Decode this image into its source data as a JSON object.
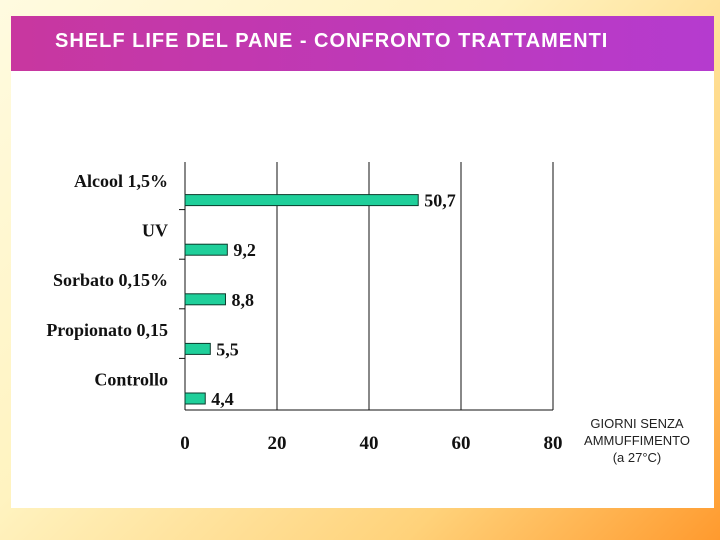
{
  "title": "SHELF LIFE DEL PANE -  CONFRONTO TRATTAMENTI",
  "colors": {
    "bar": "#1fcf9a",
    "title_bar": "#c23ab4"
  },
  "chart_data": {
    "type": "bar",
    "orientation": "horizontal",
    "title": "SHELF LIFE DEL PANE -  CONFRONTO TRATTAMENTI",
    "categories": [
      "Alcool 1,5%",
      "UV",
      "Sorbato 0,15%",
      "Propionato 0,15",
      "Controllo"
    ],
    "values": [
      50.7,
      9.2,
      8.8,
      5.5,
      4.4
    ],
    "value_labels": [
      "50,7",
      "9,2",
      "8,8",
      "5,5",
      "4,4"
    ],
    "xlim": [
      0,
      80
    ],
    "xticks": [
      0,
      20,
      40,
      60,
      80
    ],
    "xtick_labels": [
      "0",
      "20",
      "40",
      "60",
      "80"
    ],
    "xlabel": [
      "GIORNI SENZA",
      "AMMUFFIMENTO",
      "(a 27°C)"
    ],
    "ylabel": "",
    "grid": true
  }
}
